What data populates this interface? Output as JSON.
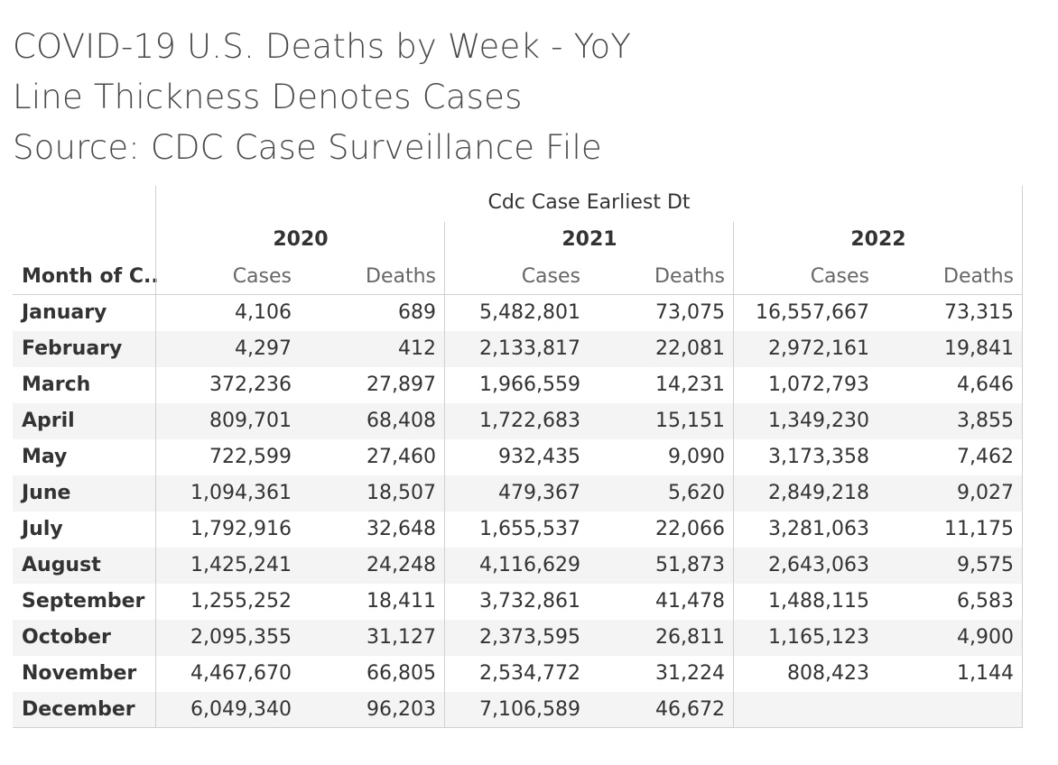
{
  "chart_data": {
    "type": "table",
    "title_lines": [
      "COVID-19 U.S. Deaths by Week - YoY",
      "Line Thickness Denotes Cases",
      "Source: CDC Case Surveillance File"
    ],
    "column_field": "Cdc Case Earliest Dt",
    "row_field": "Month of C..",
    "years": [
      "2020",
      "2021",
      "2022"
    ],
    "measures": [
      "Cases",
      "Deaths"
    ],
    "rows": [
      {
        "month": "January",
        "values": [
          "4,106",
          "689",
          "5,482,801",
          "73,075",
          "16,557,667",
          "73,315"
        ]
      },
      {
        "month": "February",
        "values": [
          "4,297",
          "412",
          "2,133,817",
          "22,081",
          "2,972,161",
          "19,841"
        ]
      },
      {
        "month": "March",
        "values": [
          "372,236",
          "27,897",
          "1,966,559",
          "14,231",
          "1,072,793",
          "4,646"
        ]
      },
      {
        "month": "April",
        "values": [
          "809,701",
          "68,408",
          "1,722,683",
          "15,151",
          "1,349,230",
          "3,855"
        ]
      },
      {
        "month": "May",
        "values": [
          "722,599",
          "27,460",
          "932,435",
          "9,090",
          "3,173,358",
          "7,462"
        ]
      },
      {
        "month": "June",
        "values": [
          "1,094,361",
          "18,507",
          "479,367",
          "5,620",
          "2,849,218",
          "9,027"
        ]
      },
      {
        "month": "July",
        "values": [
          "1,792,916",
          "32,648",
          "1,655,537",
          "22,066",
          "3,281,063",
          "11,175"
        ]
      },
      {
        "month": "August",
        "values": [
          "1,425,241",
          "24,248",
          "4,116,629",
          "51,873",
          "2,643,063",
          "9,575"
        ]
      },
      {
        "month": "September",
        "values": [
          "1,255,252",
          "18,411",
          "3,732,861",
          "41,478",
          "1,488,115",
          "6,583"
        ]
      },
      {
        "month": "October",
        "values": [
          "2,095,355",
          "31,127",
          "2,373,595",
          "26,811",
          "1,165,123",
          "4,900"
        ]
      },
      {
        "month": "November",
        "values": [
          "4,467,670",
          "66,805",
          "2,534,772",
          "31,224",
          "808,423",
          "1,144"
        ]
      },
      {
        "month": "December",
        "values": [
          "6,049,340",
          "96,203",
          "7,106,589",
          "46,672",
          "",
          ""
        ]
      }
    ]
  }
}
